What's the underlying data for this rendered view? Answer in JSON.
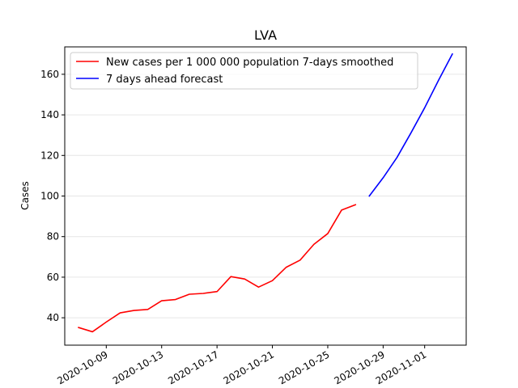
{
  "chart_data": {
    "type": "line",
    "title": "LVA",
    "xlabel": "",
    "ylabel": "Cases",
    "ylim": [
      26.5,
      173.5
    ],
    "xlim": [
      "2020-10-06",
      "2020-11-04"
    ],
    "grid": {
      "x": false,
      "y": true
    },
    "legend_position": "top-left",
    "x_ticks": [
      "2020-10-09",
      "2020-10-13",
      "2020-10-17",
      "2020-10-21",
      "2020-10-25",
      "2020-10-29",
      "2020-11-01"
    ],
    "y_ticks": [
      40,
      60,
      80,
      100,
      120,
      140,
      160
    ],
    "series": [
      {
        "name": "New cases per 1 000 000 population 7-days smoothed",
        "color": "#ff0000",
        "x": [
          "2020-10-07",
          "2020-10-08",
          "2020-10-09",
          "2020-10-10",
          "2020-10-11",
          "2020-10-12",
          "2020-10-13",
          "2020-10-14",
          "2020-10-15",
          "2020-10-16",
          "2020-10-17",
          "2020-10-18",
          "2020-10-19",
          "2020-10-20",
          "2020-10-21",
          "2020-10-22",
          "2020-10-23",
          "2020-10-24",
          "2020-10-25",
          "2020-10-26",
          "2020-10-27"
        ],
        "y": [
          35.2,
          33.1,
          37.9,
          42.4,
          43.6,
          44.1,
          48.4,
          49.0,
          51.6,
          52.0,
          52.9,
          60.3,
          59.1,
          55.1,
          58.3,
          64.9,
          68.4,
          76.2,
          81.5,
          93.1,
          95.7
        ]
      },
      {
        "name": "7 days ahead forecast",
        "color": "#0000ff",
        "x": [
          "2020-10-28",
          "2020-10-29",
          "2020-10-30",
          "2020-10-31",
          "2020-11-01",
          "2020-11-02",
          "2020-11-03"
        ],
        "y": [
          100.0,
          109.0,
          119.0,
          131.0,
          143.5,
          157.0,
          170.0
        ]
      }
    ]
  }
}
